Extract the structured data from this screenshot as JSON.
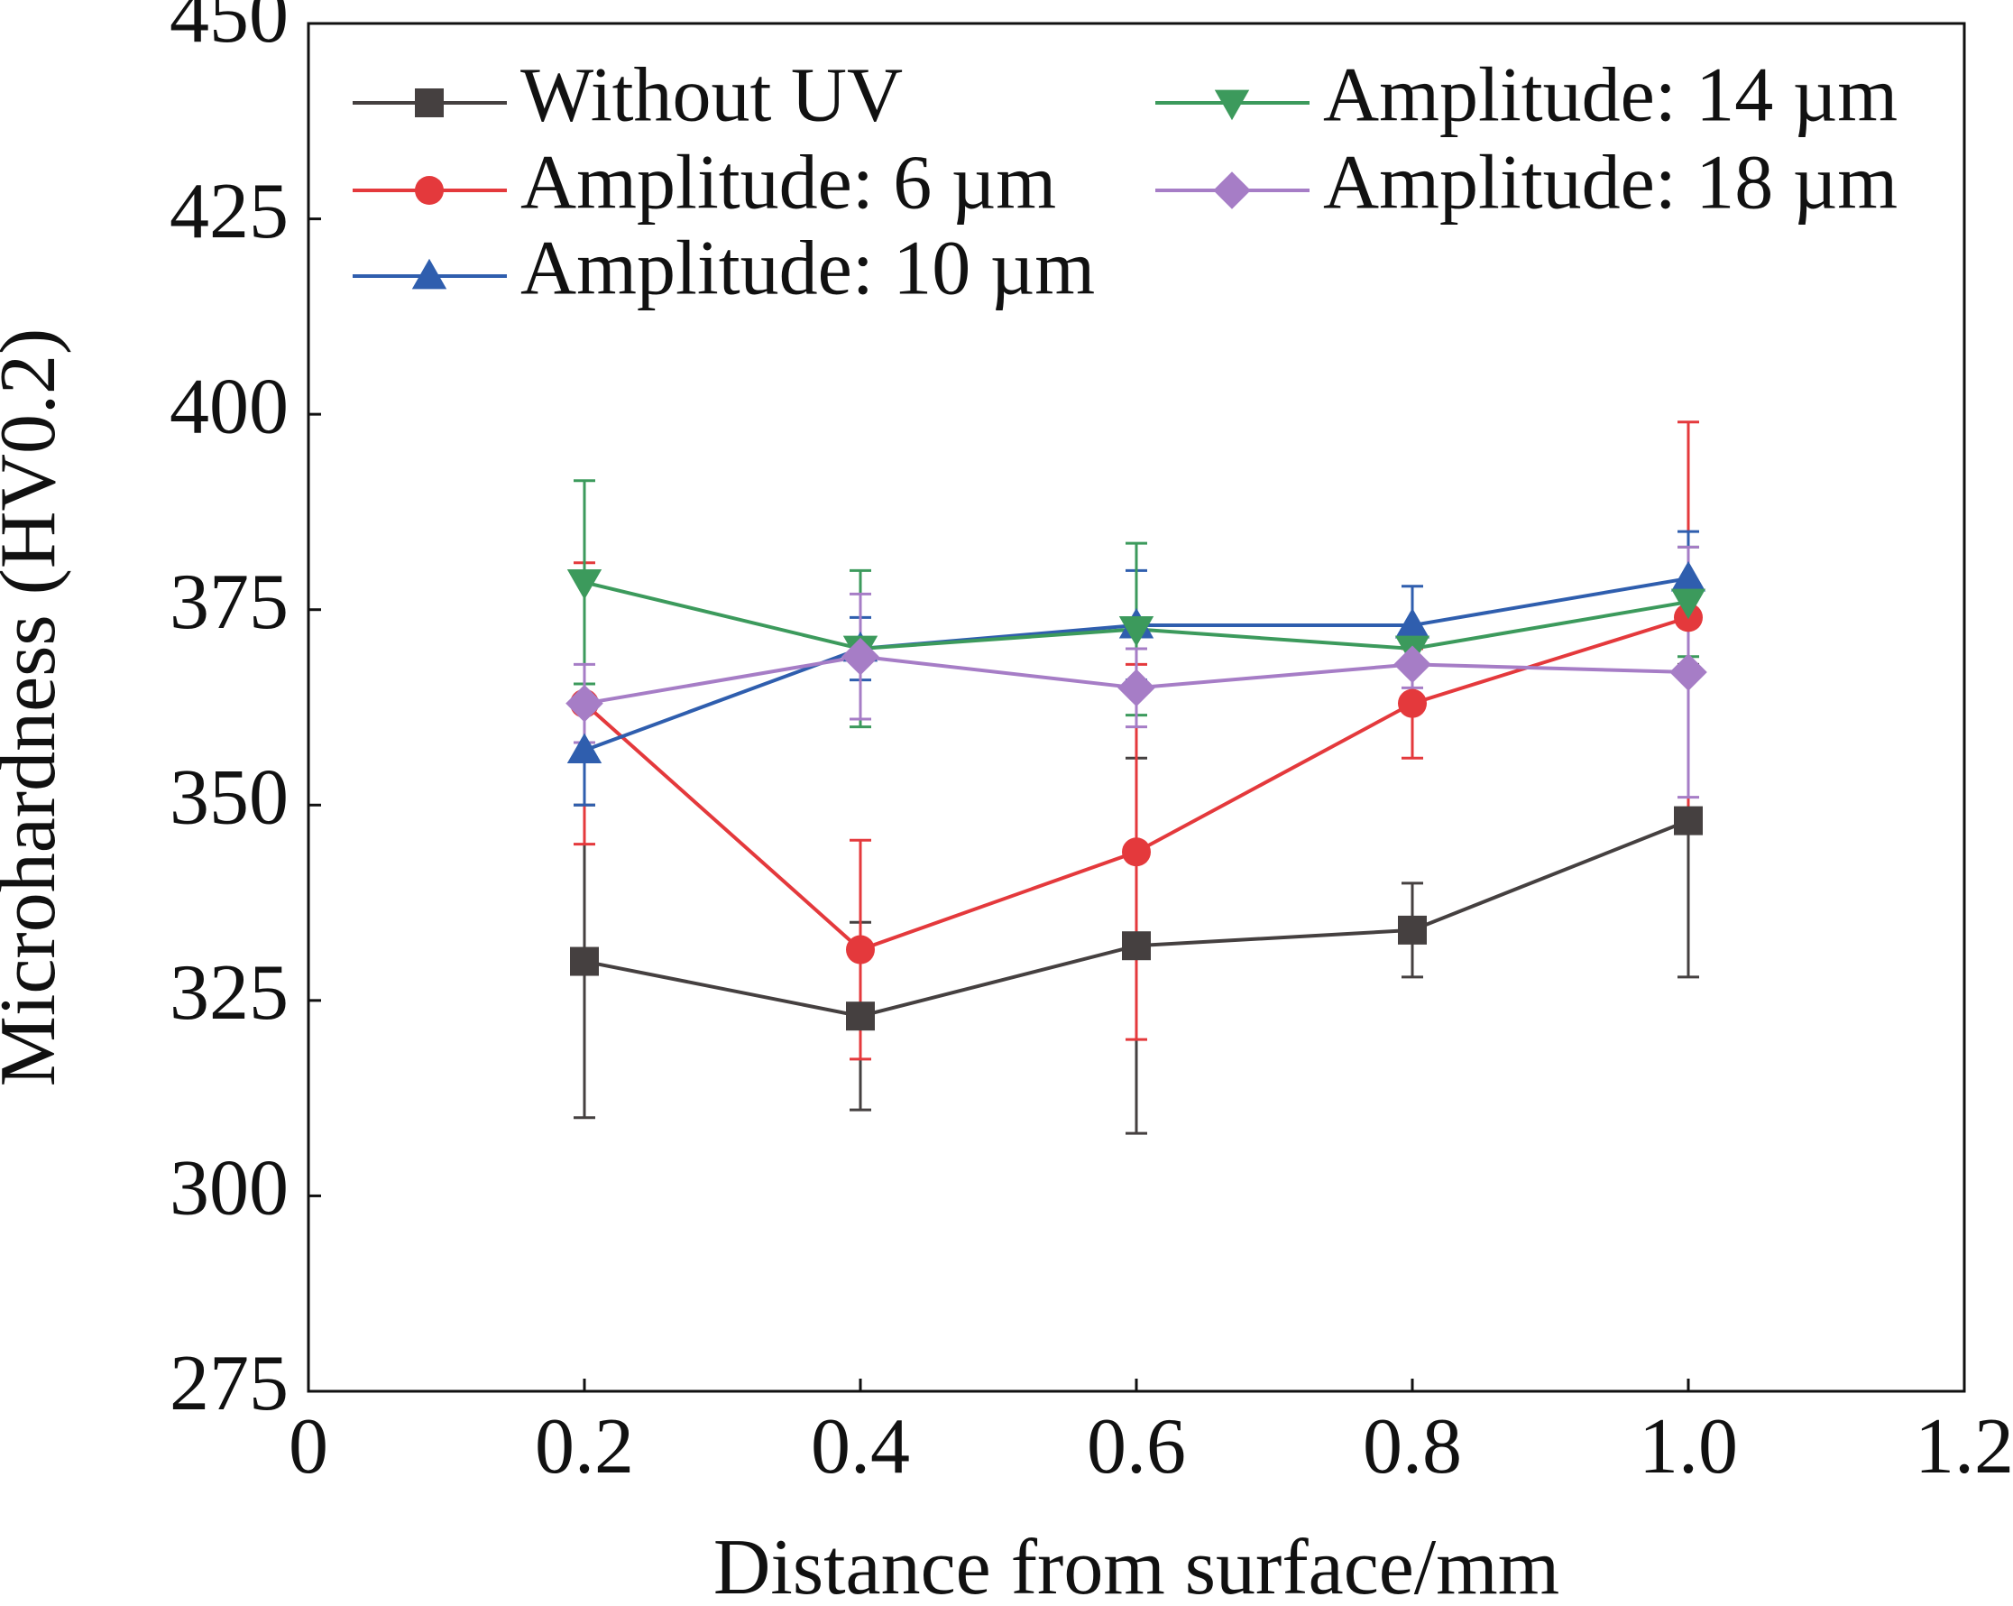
{
  "chart_data": {
    "type": "line",
    "x_label": "Distance from surface/mm",
    "y_label": "Microhardness (HV0.2)",
    "x": [
      0.2,
      0.4,
      0.6,
      0.8,
      1.0
    ],
    "xlim": [
      0,
      1.2
    ],
    "xticks": [
      0,
      0.2,
      0.4,
      0.6,
      0.8,
      {
        "value": 1,
        "label": "1.0"
      },
      1.2
    ],
    "ylim": [
      275,
      450
    ],
    "yticks": [
      275,
      300,
      325,
      350,
      375,
      400,
      425,
      450
    ],
    "legend": "top-left",
    "series": [
      {
        "name": "Without UV",
        "color": "#454040",
        "marker": "square",
        "values": [
          330,
          323,
          332,
          334,
          348
        ],
        "errors": [
          20,
          12,
          24,
          6,
          20
        ]
      },
      {
        "name": "Amplitude: 6 µm",
        "color": "#e4393c",
        "marker": "circle",
        "values": [
          363,
          331.5,
          344,
          363,
          374
        ],
        "errors": [
          18,
          14,
          24,
          7,
          25
        ]
      },
      {
        "name": "Amplitude: 10 µm",
        "color": "#2f5eae",
        "marker": "triangle",
        "values": [
          357,
          370,
          373,
          373,
          379
        ],
        "errors": [
          7,
          4,
          7,
          5,
          6
        ]
      },
      {
        "name": "Amplitude: 14 µm",
        "color": "#3c9a5c",
        "marker": "triangle-down",
        "values": [
          378.5,
          370,
          372.5,
          370,
          376
        ],
        "errors": [
          13,
          10,
          11,
          2,
          7
        ]
      },
      {
        "name": "Amplitude: 18 µm",
        "color": "#a67dc6",
        "marker": "diamond",
        "values": [
          363,
          369,
          365,
          368,
          367
        ],
        "errors": [
          5,
          8,
          5,
          3,
          16
        ]
      }
    ]
  }
}
